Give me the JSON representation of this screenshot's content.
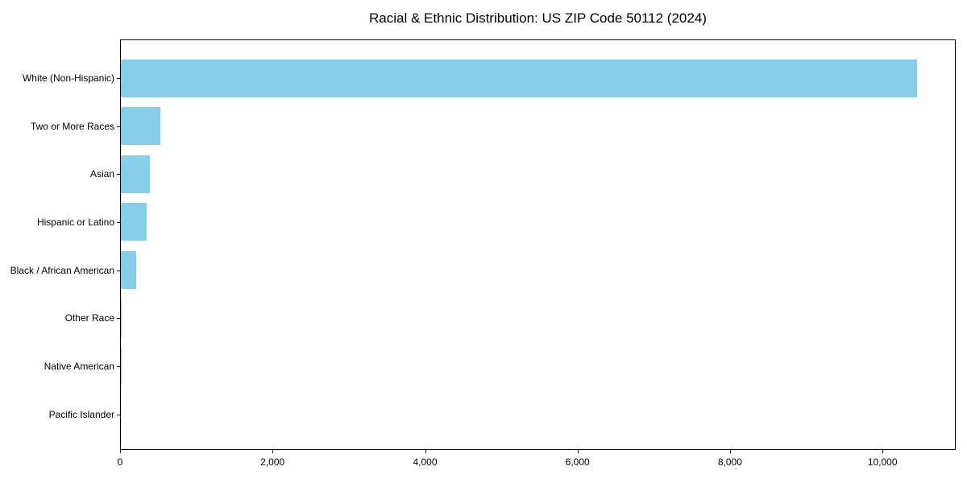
{
  "chart_data": {
    "type": "bar",
    "orientation": "horizontal",
    "title": "Racial & Ethnic Distribution: US ZIP Code 50112 (2024)",
    "categories": [
      "White (Non-Hispanic)",
      "Two or More Races",
      "Asian",
      "Hispanic or Latino",
      "Black / African American",
      "Other Race",
      "Native American",
      "Pacific Islander"
    ],
    "values": [
      10440,
      520,
      380,
      335,
      205,
      12,
      4,
      0
    ],
    "xlabel": "",
    "ylabel": "",
    "xlim": [
      0,
      10960
    ],
    "xticks": [
      0,
      2000,
      4000,
      6000,
      8000,
      10000
    ],
    "xtick_labels": [
      "0",
      "2,000",
      "4,000",
      "6,000",
      "8,000",
      "10,000"
    ],
    "bar_color": "#87CEEB",
    "axis_color": "#000000",
    "background": "#FFFFFF",
    "grid": false,
    "legend": null
  }
}
